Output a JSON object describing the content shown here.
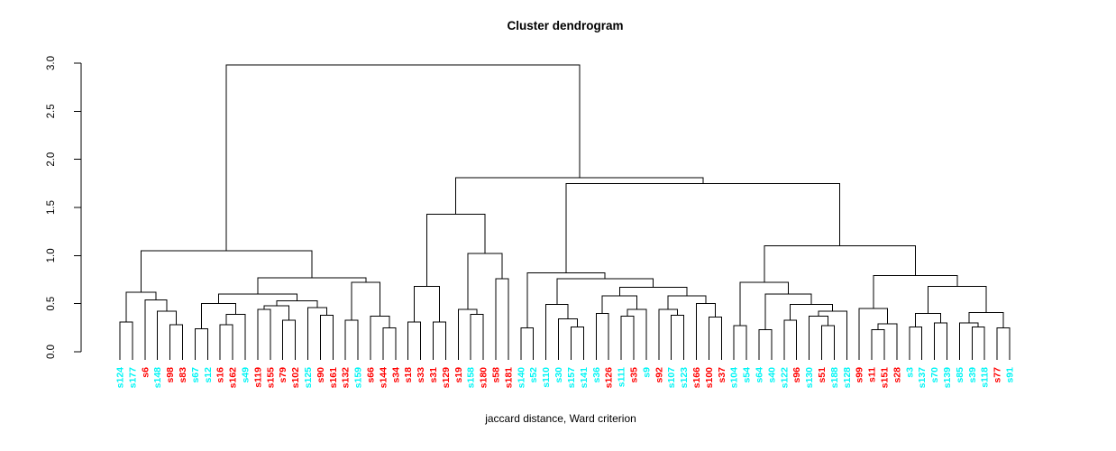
{
  "chart_data": {
    "type": "dendrogram",
    "title": "Cluster dendrogram",
    "xlabel": "jaccard distance, Ward criterion",
    "ylabel": "",
    "ylim": [
      0,
      3
    ],
    "yticks": [
      "0.0",
      "0.5",
      "1.0",
      "1.5",
      "2.0",
      "2.5",
      "3.0"
    ],
    "grid": false,
    "legend": "none",
    "colors": {
      "cyan": "#00F5F5",
      "red": "#FF0000",
      "line": "#000000"
    },
    "leaves": [
      {
        "label": "s124",
        "color": "cyan"
      },
      {
        "label": "s177",
        "color": "cyan"
      },
      {
        "label": "s6",
        "color": "red"
      },
      {
        "label": "s148",
        "color": "cyan"
      },
      {
        "label": "s98",
        "color": "red"
      },
      {
        "label": "s83",
        "color": "red"
      },
      {
        "label": "s67",
        "color": "cyan"
      },
      {
        "label": "s12",
        "color": "cyan"
      },
      {
        "label": "s16",
        "color": "red"
      },
      {
        "label": "s162",
        "color": "red"
      },
      {
        "label": "s49",
        "color": "cyan"
      },
      {
        "label": "s119",
        "color": "red"
      },
      {
        "label": "s155",
        "color": "red"
      },
      {
        "label": "s79",
        "color": "red"
      },
      {
        "label": "s102",
        "color": "red"
      },
      {
        "label": "s125",
        "color": "cyan"
      },
      {
        "label": "s90",
        "color": "red"
      },
      {
        "label": "s161",
        "color": "red"
      },
      {
        "label": "s132",
        "color": "red"
      },
      {
        "label": "s159",
        "color": "cyan"
      },
      {
        "label": "s66",
        "color": "red"
      },
      {
        "label": "s144",
        "color": "red"
      },
      {
        "label": "s34",
        "color": "red"
      },
      {
        "label": "s18",
        "color": "red"
      },
      {
        "label": "s33",
        "color": "red"
      },
      {
        "label": "s31",
        "color": "red"
      },
      {
        "label": "s129",
        "color": "red"
      },
      {
        "label": "s19",
        "color": "red"
      },
      {
        "label": "s158",
        "color": "cyan"
      },
      {
        "label": "s180",
        "color": "red"
      },
      {
        "label": "s58",
        "color": "red"
      },
      {
        "label": "s181",
        "color": "red"
      },
      {
        "label": "s140",
        "color": "cyan"
      },
      {
        "label": "s52",
        "color": "cyan"
      },
      {
        "label": "s110",
        "color": "cyan"
      },
      {
        "label": "s30",
        "color": "cyan"
      },
      {
        "label": "s157",
        "color": "cyan"
      },
      {
        "label": "s141",
        "color": "cyan"
      },
      {
        "label": "s36",
        "color": "cyan"
      },
      {
        "label": "s126",
        "color": "red"
      },
      {
        "label": "s111",
        "color": "cyan"
      },
      {
        "label": "s35",
        "color": "red"
      },
      {
        "label": "s9",
        "color": "cyan"
      },
      {
        "label": "s92",
        "color": "red"
      },
      {
        "label": "s107",
        "color": "cyan"
      },
      {
        "label": "s123",
        "color": "cyan"
      },
      {
        "label": "s166",
        "color": "red"
      },
      {
        "label": "s100",
        "color": "red"
      },
      {
        "label": "s37",
        "color": "red"
      },
      {
        "label": "s104",
        "color": "cyan"
      },
      {
        "label": "s54",
        "color": "cyan"
      },
      {
        "label": "s64",
        "color": "cyan"
      },
      {
        "label": "s40",
        "color": "cyan"
      },
      {
        "label": "s122",
        "color": "cyan"
      },
      {
        "label": "s96",
        "color": "red"
      },
      {
        "label": "s130",
        "color": "cyan"
      },
      {
        "label": "s51",
        "color": "red"
      },
      {
        "label": "s188",
        "color": "cyan"
      },
      {
        "label": "s128",
        "color": "cyan"
      },
      {
        "label": "s99",
        "color": "red"
      },
      {
        "label": "s11",
        "color": "red"
      },
      {
        "label": "s151",
        "color": "red"
      },
      {
        "label": "s28",
        "color": "red"
      },
      {
        "label": "s3",
        "color": "cyan"
      },
      {
        "label": "s137",
        "color": "cyan"
      },
      {
        "label": "s70",
        "color": "cyan"
      },
      {
        "label": "s139",
        "color": "cyan"
      },
      {
        "label": "s85",
        "color": "cyan"
      },
      {
        "label": "s39",
        "color": "cyan"
      },
      {
        "label": "s118",
        "color": "cyan"
      },
      {
        "label": "s77",
        "color": "red"
      },
      {
        "label": "s91",
        "color": "cyan"
      }
    ],
    "tree": {
      "h": 2.98,
      "c": [
        {
          "h": 1.05,
          "c": [
            {
              "h": 0.62,
              "c": [
                {
                  "h": 0.31,
                  "c": [
                    "s124",
                    "s177"
                  ]
                },
                {
                  "h": 0.54,
                  "c": [
                    "s6",
                    {
                      "h": 0.42,
                      "c": [
                        "s148",
                        {
                          "h": 0.28,
                          "c": [
                            "s98",
                            "s83"
                          ]
                        }
                      ]
                    }
                  ]
                }
              ]
            },
            {
              "h": 0.77,
              "c": [
                {
                  "h": 0.6,
                  "c": [
                    {
                      "h": 0.5,
                      "c": [
                        {
                          "h": 0.24,
                          "c": [
                            "s67",
                            "s12"
                          ]
                        },
                        {
                          "h": 0.39,
                          "c": [
                            {
                              "h": 0.28,
                              "c": [
                                "s16",
                                "s162"
                              ]
                            },
                            "s49"
                          ]
                        }
                      ]
                    },
                    {
                      "h": 0.53,
                      "c": [
                        {
                          "h": 0.48,
                          "c": [
                            {
                              "h": 0.44,
                              "c": [
                                "s119",
                                "s155"
                              ]
                            },
                            {
                              "h": 0.33,
                              "c": [
                                "s79",
                                "s102"
                              ]
                            }
                          ]
                        },
                        {
                          "h": 0.46,
                          "c": [
                            "s125",
                            {
                              "h": 0.38,
                              "c": [
                                "s90",
                                "s161"
                              ]
                            }
                          ]
                        }
                      ]
                    }
                  ]
                },
                {
                  "h": 0.72,
                  "c": [
                    {
                      "h": 0.33,
                      "c": [
                        "s132",
                        "s159"
                      ]
                    },
                    {
                      "h": 0.37,
                      "c": [
                        "s66",
                        {
                          "h": 0.25,
                          "c": [
                            "s144",
                            "s34"
                          ]
                        }
                      ]
                    }
                  ]
                }
              ]
            }
          ]
        },
        {
          "h": 1.81,
          "c": [
            {
              "h": 1.43,
              "c": [
                {
                  "h": 0.68,
                  "c": [
                    {
                      "h": 0.31,
                      "c": [
                        "s18",
                        "s33"
                      ]
                    },
                    {
                      "h": 0.31,
                      "c": [
                        "s31",
                        "s129"
                      ]
                    }
                  ]
                },
                {
                  "h": 1.02,
                  "c": [
                    {
                      "h": 0.44,
                      "c": [
                        "s19",
                        {
                          "h": 0.39,
                          "c": [
                            "s158",
                            "s180"
                          ]
                        }
                      ]
                    },
                    {
                      "h": 0.76,
                      "c": [
                        "s58",
                        "s181"
                      ]
                    }
                  ]
                }
              ]
            },
            {
              "h": 1.75,
              "c": [
                {
                  "h": 0.82,
                  "c": [
                    {
                      "h": 0.25,
                      "c": [
                        "s140",
                        "s52"
                      ]
                    },
                    {
                      "h": 0.76,
                      "c": [
                        {
                          "h": 0.49,
                          "c": [
                            "s110",
                            {
                              "h": 0.34,
                              "c": [
                                "s30",
                                {
                                  "h": 0.26,
                                  "c": [
                                    "s157",
                                    "s141"
                                  ]
                                }
                              ]
                            }
                          ]
                        },
                        {
                          "h": 0.67,
                          "c": [
                            {
                              "h": 0.58,
                              "c": [
                                {
                                  "h": 0.4,
                                  "c": [
                                    "s36",
                                    "s126"
                                  ]
                                },
                                {
                                  "h": 0.44,
                                  "c": [
                                    {
                                      "h": 0.37,
                                      "c": [
                                        "s111",
                                        "s35"
                                      ]
                                    },
                                    "s9"
                                  ]
                                }
                              ]
                            },
                            {
                              "h": 0.58,
                              "c": [
                                {
                                  "h": 0.44,
                                  "c": [
                                    "s92",
                                    {
                                      "h": 0.38,
                                      "c": [
                                        "s107",
                                        "s123"
                                      ]
                                    }
                                  ]
                                },
                                {
                                  "h": 0.5,
                                  "c": [
                                    "s166",
                                    {
                                      "h": 0.36,
                                      "c": [
                                        "s100",
                                        "s37"
                                      ]
                                    }
                                  ]
                                }
                              ]
                            }
                          ]
                        }
                      ]
                    }
                  ]
                },
                {
                  "h": 1.1,
                  "c": [
                    {
                      "h": 0.72,
                      "c": [
                        {
                          "h": 0.27,
                          "c": [
                            "s104",
                            "s54"
                          ]
                        },
                        {
                          "h": 0.6,
                          "c": [
                            {
                              "h": 0.23,
                              "c": [
                                "s64",
                                "s40"
                              ]
                            },
                            {
                              "h": 0.49,
                              "c": [
                                {
                                  "h": 0.33,
                                  "c": [
                                    "s122",
                                    "s96"
                                  ]
                                },
                                {
                                  "h": 0.42,
                                  "c": [
                                    {
                                      "h": 0.37,
                                      "c": [
                                        "s130",
                                        {
                                          "h": 0.27,
                                          "c": [
                                            "s51",
                                            "s188"
                                          ]
                                        }
                                      ]
                                    },
                                    "s128"
                                  ]
                                }
                              ]
                            }
                          ]
                        }
                      ]
                    },
                    {
                      "h": 0.79,
                      "c": [
                        {
                          "h": 0.45,
                          "c": [
                            "s99",
                            {
                              "h": 0.29,
                              "c": [
                                {
                                  "h": 0.23,
                                  "c": [
                                    "s11",
                                    "s151"
                                  ]
                                },
                                "s28"
                              ]
                            }
                          ]
                        },
                        {
                          "h": 0.68,
                          "c": [
                            {
                              "h": 0.4,
                              "c": [
                                {
                                  "h": 0.26,
                                  "c": [
                                    "s3",
                                    "s137"
                                  ]
                                },
                                {
                                  "h": 0.3,
                                  "c": [
                                    "s70",
                                    "s139"
                                  ]
                                }
                              ]
                            },
                            {
                              "h": 0.41,
                              "c": [
                                {
                                  "h": 0.3,
                                  "c": [
                                    "s85",
                                    {
                                      "h": 0.26,
                                      "c": [
                                        "s39",
                                        "s118"
                                      ]
                                    }
                                  ]
                                },
                                {
                                  "h": 0.25,
                                  "c": [
                                    "s77",
                                    "s91"
                                  ]
                                }
                              ]
                            }
                          ]
                        }
                      ]
                    }
                  ]
                }
              ]
            }
          ]
        }
      ]
    }
  }
}
